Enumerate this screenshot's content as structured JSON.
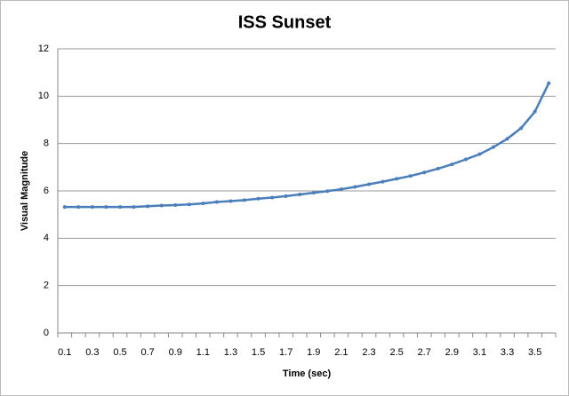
{
  "chart_data": {
    "type": "line",
    "title": "ISS Sunset",
    "x_label": "Time (sec)",
    "y_label": "Visual Magnitude",
    "categories": [
      "0.1",
      null,
      "0.3",
      null,
      "0.5",
      null,
      "0.7",
      null,
      "0.9",
      null,
      "1.1",
      null,
      "1.3",
      null,
      "1.5",
      null,
      "1.7",
      null,
      "1.9",
      null,
      "2.1",
      null,
      "2.3",
      null,
      "2.5",
      null,
      "2.7",
      null,
      "2.9",
      null,
      "3.1",
      null,
      "3.3",
      null,
      "3.5",
      null
    ],
    "series": [
      {
        "name": "Visual Magnitude",
        "color": "#4a7ebb",
        "values": [
          5.32,
          5.32,
          5.32,
          5.32,
          5.32,
          5.32,
          5.35,
          5.38,
          5.4,
          5.43,
          5.47,
          5.53,
          5.57,
          5.61,
          5.67,
          5.72,
          5.78,
          5.85,
          5.92,
          5.99,
          6.07,
          6.17,
          6.28,
          6.39,
          6.51,
          6.63,
          6.78,
          6.94,
          7.12,
          7.33,
          7.55,
          7.85,
          8.2,
          8.65,
          9.35,
          10.55
        ]
      }
    ],
    "ylim": [
      0,
      12
    ],
    "yticks": [
      0,
      2,
      4,
      6,
      8,
      10,
      12
    ],
    "grid": true
  }
}
